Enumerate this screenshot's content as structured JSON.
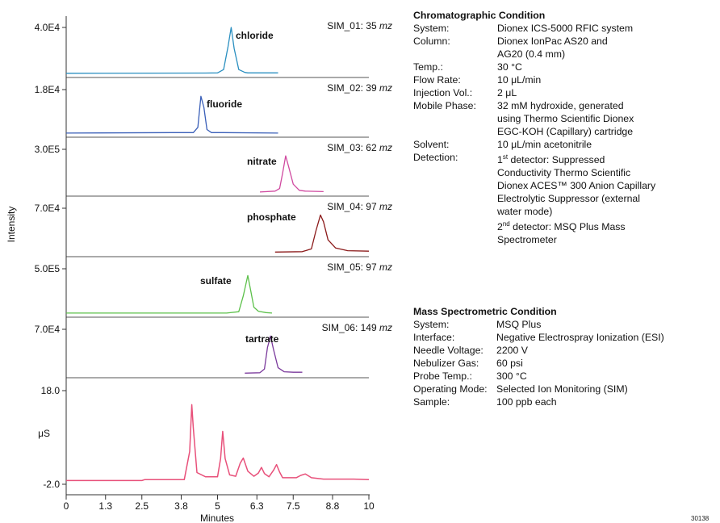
{
  "chart_data": {
    "type": "line",
    "xlabel": "Minutes",
    "ylabel": "Intensity",
    "xlim": [
      0,
      10
    ],
    "x_ticks": [
      "0",
      "1.3",
      "2.5",
      "3.8",
      "5",
      "6.3",
      "7.5",
      "8.8",
      "10"
    ],
    "panels": [
      {
        "name": "chloride",
        "tick": "4.0E4",
        "info": "SIM_01: 35",
        "unit": "mz",
        "color": "#2a8fc0",
        "x": [
          0,
          4.6,
          5.0,
          5.2,
          5.35,
          5.45,
          5.55,
          5.7,
          5.9,
          6.0,
          7.0
        ],
        "y": [
          0.02,
          0.025,
          0.03,
          0.1,
          0.6,
          1.0,
          0.55,
          0.1,
          0.04,
          0.03,
          0.03
        ]
      },
      {
        "name": "fluoride",
        "tick": "1.8E4",
        "info": "SIM_02: 39",
        "unit": "mz",
        "color": "#3a5fb8",
        "x": [
          0,
          3.5,
          4.2,
          4.35,
          4.45,
          4.55,
          4.65,
          4.8,
          5.2,
          7.0
        ],
        "y": [
          0.02,
          0.03,
          0.03,
          0.15,
          0.85,
          0.6,
          0.1,
          0.03,
          0.03,
          0.02
        ]
      },
      {
        "name": "nitrate",
        "tick": "3.0E5",
        "info": "SIM_03: 62",
        "unit": "mz",
        "color": "#d04aa0",
        "x": [
          6.4,
          6.9,
          7.05,
          7.15,
          7.25,
          7.35,
          7.5,
          7.7,
          7.9,
          8.5
        ],
        "y": [
          0.02,
          0.04,
          0.1,
          0.45,
          0.85,
          0.6,
          0.2,
          0.06,
          0.04,
          0.03
        ]
      },
      {
        "name": "phosphate",
        "tick": "7.0E4",
        "info": "SIM_04: 97",
        "unit": "mz",
        "color": "#8b1a1a",
        "x": [
          6.9,
          7.8,
          8.1,
          8.25,
          8.4,
          8.5,
          8.65,
          8.9,
          9.3,
          10.0
        ],
        "y": [
          0.03,
          0.04,
          0.1,
          0.5,
          0.85,
          0.7,
          0.3,
          0.12,
          0.06,
          0.05
        ]
      },
      {
        "name": "sulfate",
        "tick": "5.0E5",
        "info": "SIM_05: 97",
        "unit": "mz",
        "color": "#5cc04a",
        "x": [
          0,
          5.3,
          5.7,
          5.85,
          6.0,
          6.1,
          6.2,
          6.35,
          6.6,
          6.8
        ],
        "y": [
          0.02,
          0.02,
          0.05,
          0.4,
          0.85,
          0.5,
          0.15,
          0.06,
          0.03,
          0.02
        ]
      },
      {
        "name": "tartrate",
        "tick": "7.0E4",
        "info": "SIM_06: 149",
        "unit": "mz",
        "color": "#7b3a9c",
        "x": [
          5.9,
          6.4,
          6.55,
          6.65,
          6.75,
          6.85,
          7.0,
          7.2,
          7.5,
          7.8
        ],
        "y": [
          0.03,
          0.04,
          0.12,
          0.6,
          0.85,
          0.55,
          0.15,
          0.06,
          0.05,
          0.05
        ]
      }
    ],
    "conductivity": {
      "color": "#e8507a",
      "unit": "μS",
      "y_ticks": [
        "18.0",
        "-2.0"
      ],
      "ylim": [
        -2.0,
        18.0
      ],
      "x": [
        0,
        2.5,
        2.6,
        3.9,
        4.08,
        4.15,
        4.2,
        4.32,
        4.6,
        5.0,
        5.1,
        5.17,
        5.25,
        5.4,
        5.6,
        5.75,
        5.85,
        6.0,
        6.2,
        6.35,
        6.45,
        6.55,
        6.7,
        6.85,
        6.95,
        7.05,
        7.15,
        7.6,
        7.75,
        7.9,
        8.1,
        8.5,
        9.5,
        10.0
      ],
      "y": [
        -1.2,
        -1.2,
        -1.0,
        -1.0,
        5.0,
        15.0,
        10.0,
        0.5,
        -0.4,
        -0.4,
        3.5,
        9.3,
        3.5,
        0.0,
        -0.3,
        2.5,
        3.6,
        0.8,
        -0.3,
        0.4,
        1.6,
        0.3,
        -0.4,
        1.0,
        2.2,
        0.6,
        -0.6,
        -0.6,
        -0.1,
        0.2,
        -0.6,
        -0.9,
        -0.9,
        -1.0
      ]
    }
  },
  "conditions": {
    "chromatographic": {
      "title": "Chromatographic Condition",
      "rows": [
        {
          "label": "System:",
          "value": "Dionex ICS-5000 RFIC system"
        },
        {
          "label": "Column:",
          "value": "Dionex IonPac AS20 and"
        },
        {
          "label": "",
          "value": "AG20 (0.4 mm)"
        },
        {
          "label": "Temp.:",
          "value": "30 °C"
        },
        {
          "label": "Flow Rate:",
          "value": "10 μL/min"
        },
        {
          "label": "Injection Vol.:",
          "value": "2 μL"
        },
        {
          "label": "Mobile Phase:",
          "value": "32 mM hydroxide, generated"
        },
        {
          "label": "",
          "value": "using Thermo Scientific Dionex"
        },
        {
          "label": "",
          "value": "EGC-KOH (Capillary) cartridge"
        },
        {
          "label": "Solvent:",
          "value": "10 μL/min acetonitrile"
        },
        {
          "label": "Detection:",
          "value": "1st detector: Suppressed"
        },
        {
          "label": "",
          "value": "Conductivity Thermo Scientific"
        },
        {
          "label": "",
          "value": "Dionex ACES™ 300 Anion Capillary"
        },
        {
          "label": "",
          "value": "Electrolytic Suppressor (external"
        },
        {
          "label": "",
          "value": "water mode)"
        },
        {
          "label": "",
          "value": "2nd detector: MSQ Plus Mass"
        },
        {
          "label": "",
          "value": "Spectrometer"
        }
      ]
    },
    "mass_spec": {
      "title": "Mass Spectrometric Condition",
      "rows": [
        {
          "label": "System:",
          "value": "MSQ Plus"
        },
        {
          "label": "Interface:",
          "value": "Negative Electrospray Ionization (ESI)"
        },
        {
          "label": "Needle Voltage:",
          "value": "2200 V"
        },
        {
          "label": "Nebulizer Gas:",
          "value": "60 psi"
        },
        {
          "label": "Probe Temp.:",
          "value": "300 °C"
        },
        {
          "label": "Operating Mode:",
          "value": "Selected Ion Monitoring (SIM)"
        },
        {
          "label": "Sample:",
          "value": "100 ppb each"
        }
      ]
    }
  },
  "figure_id": "30138"
}
